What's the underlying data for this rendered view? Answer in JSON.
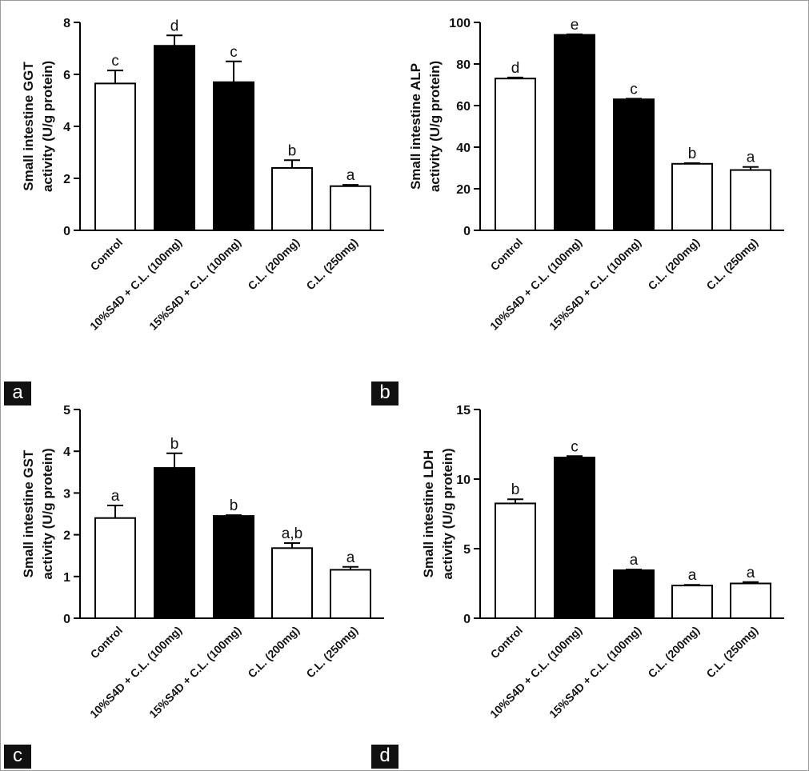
{
  "colors": {
    "filled": "#000000",
    "open": "#ffffff",
    "stroke": "#000000"
  },
  "chart_data": [
    {
      "panel": "a",
      "type": "bar",
      "ylabel": [
        "Small intestine GGT",
        "activity (U/g protein)"
      ],
      "ylim": [
        0,
        8
      ],
      "yticks": [
        0,
        2,
        4,
        6,
        8
      ],
      "categories": [
        "Control",
        "10%S4D + C.L. (100mg)",
        "15%S4D + C.L. (100mg)",
        "C.L. (200mg)",
        "C.L. (250mg)"
      ],
      "values": [
        5.65,
        7.1,
        5.7,
        2.4,
        1.7
      ],
      "errors": [
        0.5,
        0.4,
        0.8,
        0.3,
        0.05
      ],
      "letters": [
        "c",
        "d",
        "c",
        "b",
        "a"
      ],
      "fill": [
        "open",
        "filled",
        "filled",
        "open",
        "open"
      ]
    },
    {
      "panel": "b",
      "type": "bar",
      "ylabel": [
        "Small intestine ALP",
        "activity (U/g protein)"
      ],
      "ylim": [
        0,
        100
      ],
      "yticks": [
        0,
        20,
        40,
        60,
        80,
        100
      ],
      "categories": [
        "Control",
        "10%S4D + C.L. (100mg)",
        "15%S4D + C.L. (100mg)",
        "C.L. (200mg)",
        "C.L. (250mg)"
      ],
      "values": [
        73,
        94,
        63,
        32,
        29
      ],
      "errors": [
        0.5,
        0.3,
        0.3,
        0.3,
        1.5
      ],
      "letters": [
        "d",
        "e",
        "c",
        "b",
        "a"
      ],
      "fill": [
        "open",
        "filled",
        "filled",
        "open",
        "open"
      ]
    },
    {
      "panel": "c",
      "type": "bar",
      "ylabel": [
        "Small intestine GST",
        "activity (U/g protein)"
      ],
      "ylim": [
        0,
        5
      ],
      "yticks": [
        0,
        1,
        2,
        3,
        4,
        5
      ],
      "categories": [
        "Control",
        "10%S4D + C.L. (100mg)",
        "15%S4D + C.L. (100mg)",
        "C.L. (200mg)",
        "C.L. (250mg)"
      ],
      "values": [
        2.4,
        3.6,
        2.45,
        1.68,
        1.16
      ],
      "errors": [
        0.3,
        0.35,
        0.02,
        0.12,
        0.07
      ],
      "letters": [
        "a",
        "b",
        "b",
        "a,b",
        "a"
      ],
      "fill": [
        "open",
        "filled",
        "filled",
        "open",
        "open"
      ]
    },
    {
      "panel": "d",
      "type": "bar",
      "ylabel": [
        "Small intestine LDH",
        "activity (U/g protein)"
      ],
      "ylim": [
        0,
        15
      ],
      "yticks": [
        0,
        5,
        10,
        15
      ],
      "categories": [
        "Control",
        "10%S4D + C.L. (100mg)",
        "15%S4D + C.L. (100mg)",
        "C.L. (200mg)",
        "C.L. (250mg)"
      ],
      "values": [
        8.25,
        11.55,
        3.45,
        2.35,
        2.5
      ],
      "errors": [
        0.3,
        0.1,
        0.05,
        0.05,
        0.1
      ],
      "letters": [
        "b",
        "c",
        "a",
        "a",
        "a"
      ],
      "fill": [
        "open",
        "filled",
        "filled",
        "open",
        "open"
      ]
    }
  ]
}
